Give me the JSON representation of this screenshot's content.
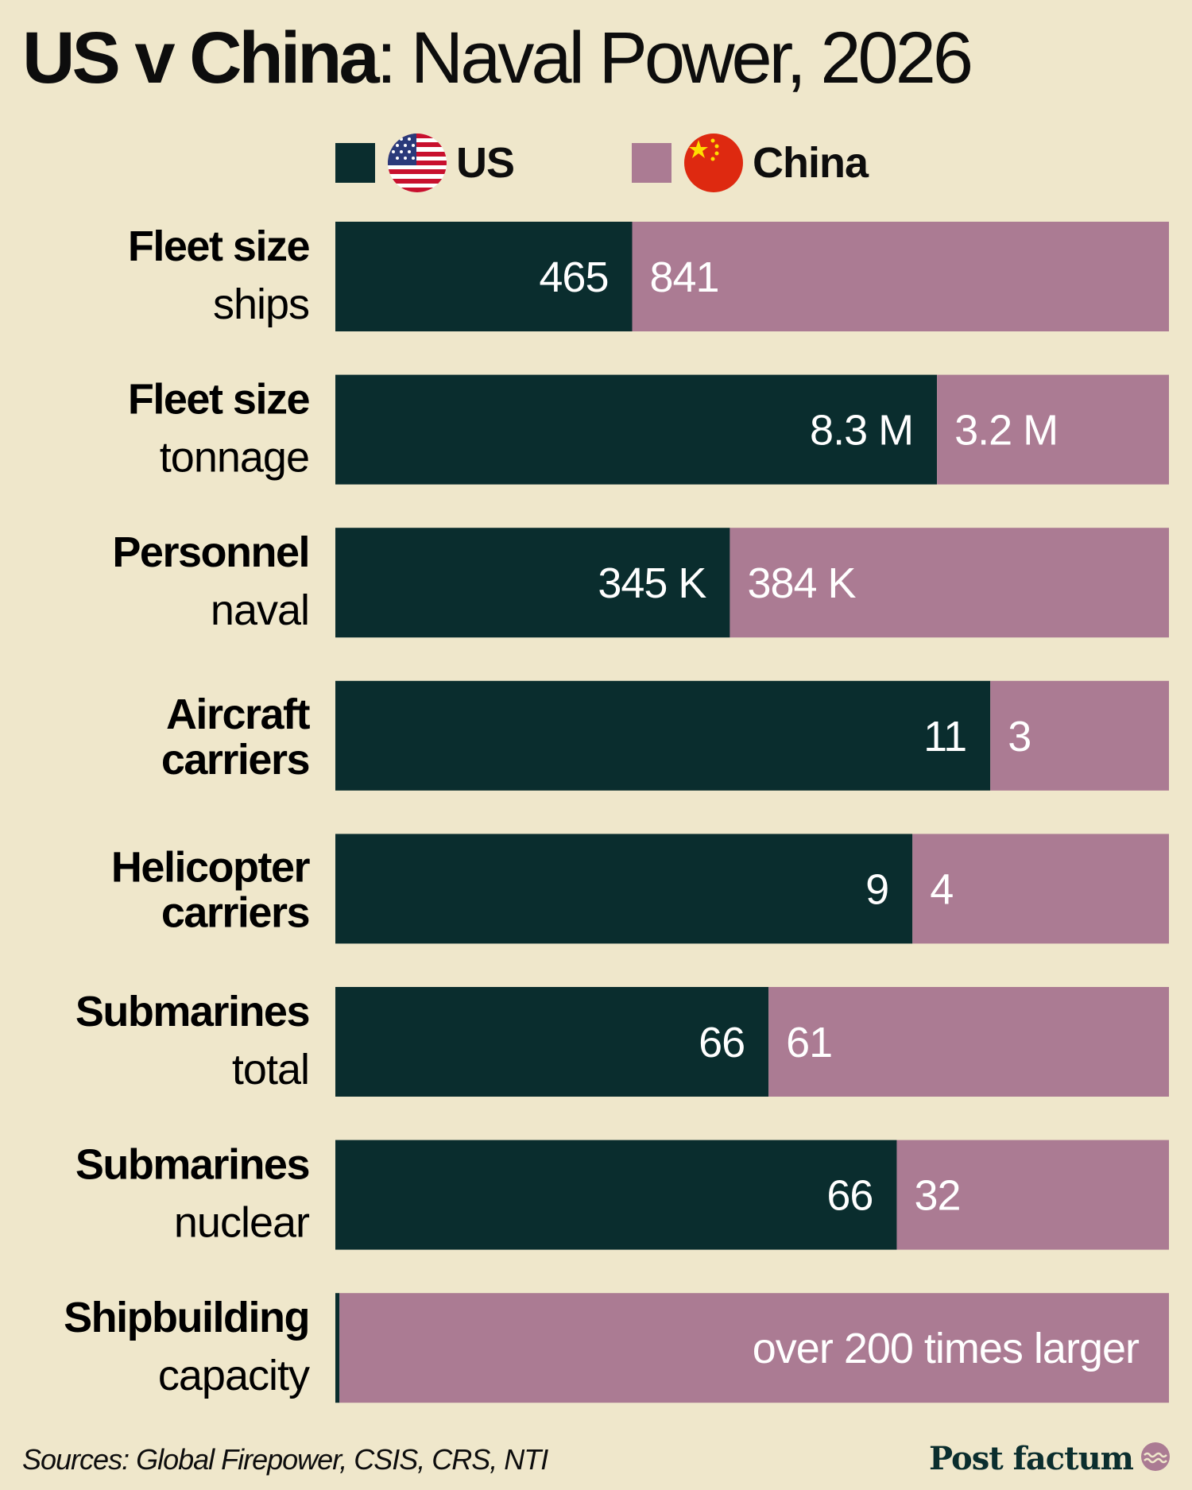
{
  "title": {
    "bold": "US v China",
    "light": ": Naval Power, 2026"
  },
  "legend": [
    {
      "name": "US",
      "color": "#0a2d2e",
      "flag_icon": "us-flag-icon"
    },
    {
      "name": "China",
      "color": "#ab7b93",
      "flag_icon": "china-flag-icon"
    }
  ],
  "colors": {
    "background": "#efe7cb",
    "us": "#0a2d2e",
    "china": "#ab7b93"
  },
  "chart_data": {
    "type": "bar",
    "stacked": "percent",
    "orientation": "horizontal",
    "categories": [
      {
        "main": "Fleet size",
        "sub": "ships"
      },
      {
        "main": "Fleet size",
        "sub": "tonnage"
      },
      {
        "main": "Personnel",
        "sub": "naval"
      },
      {
        "main": "Aircraft carriers",
        "sub": ""
      },
      {
        "main": "Helicopter carriers",
        "sub": ""
      },
      {
        "main": "Submarines",
        "sub": "total"
      },
      {
        "main": "Submarines",
        "sub": "nuclear"
      },
      {
        "main": "Shipbuilding",
        "sub": "capacity"
      }
    ],
    "series": [
      {
        "name": "US",
        "values": [
          465,
          8.3,
          345,
          11,
          9,
          66,
          66,
          1
        ],
        "labels": [
          "465",
          "8.3 M",
          "345 K",
          "11",
          "9",
          "66",
          "66",
          ""
        ]
      },
      {
        "name": "China",
        "values": [
          841,
          3.2,
          384,
          3,
          4,
          61,
          32,
          200
        ],
        "labels": [
          "841",
          "3.2 M",
          "384 K",
          "3",
          "4",
          "61",
          "32",
          "over 200 times larger"
        ]
      }
    ]
  },
  "footer": {
    "sources": "Sources: Global Firepower, CSIS, CRS, NTI",
    "brand": "Post factum",
    "brand_icon": "wave-logo-icon"
  }
}
